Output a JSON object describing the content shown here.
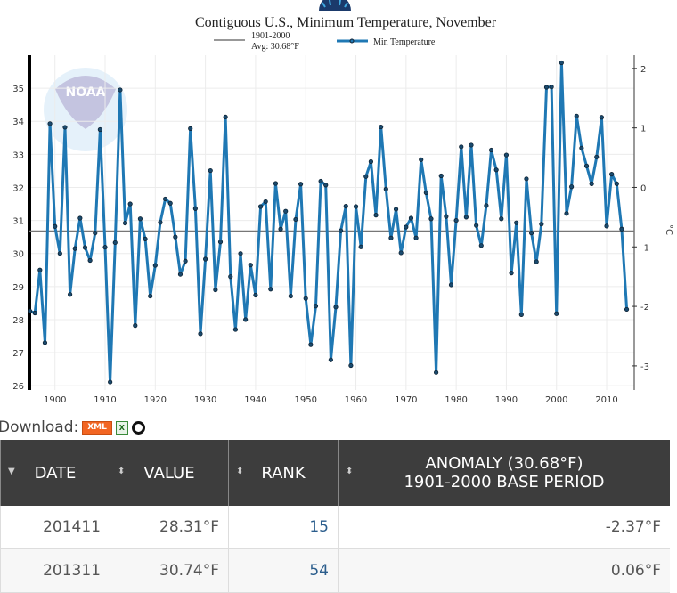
{
  "chart_data": {
    "type": "line",
    "title": "Contiguous U.S., Minimum Temperature, November",
    "legend": [
      {
        "label_line1": "1901-2000",
        "label_line2": "Avg: 30.68°F",
        "color": "#777777"
      },
      {
        "label": "Min Temperature",
        "color": "#1f78b4"
      }
    ],
    "legend_placement": "top",
    "baseline": 30.68,
    "x_ticks": [
      1900,
      1910,
      1920,
      1930,
      1940,
      1950,
      1960,
      1970,
      1980,
      1990,
      2000,
      2010
    ],
    "y_ticks": [
      26,
      27,
      28,
      29,
      30,
      31,
      32,
      33,
      34,
      35
    ],
    "y2_ticks": [
      -3,
      -2,
      -1,
      0,
      1,
      2
    ],
    "y2_label": "°C",
    "xlim": [
      1894.9,
      2015.5
    ],
    "ylim": [
      25.87,
      36.0
    ],
    "grid": true,
    "x": [
      1895,
      1896,
      1897,
      1898,
      1899,
      1900,
      1901,
      1902,
      1903,
      1904,
      1905,
      1906,
      1907,
      1908,
      1909,
      1910,
      1911,
      1912,
      1913,
      1914,
      1915,
      1916,
      1917,
      1918,
      1919,
      1920,
      1921,
      1922,
      1923,
      1924,
      1925,
      1926,
      1927,
      1928,
      1929,
      1930,
      1931,
      1932,
      1933,
      1934,
      1935,
      1936,
      1937,
      1938,
      1939,
      1940,
      1941,
      1942,
      1943,
      1944,
      1945,
      1946,
      1947,
      1948,
      1949,
      1950,
      1951,
      1952,
      1953,
      1954,
      1955,
      1956,
      1957,
      1958,
      1959,
      1960,
      1961,
      1962,
      1963,
      1964,
      1965,
      1966,
      1967,
      1968,
      1969,
      1970,
      1971,
      1972,
      1973,
      1974,
      1975,
      1976,
      1977,
      1978,
      1979,
      1980,
      1981,
      1982,
      1983,
      1984,
      1985,
      1986,
      1987,
      1988,
      1989,
      1990,
      1991,
      1992,
      1993,
      1994,
      1995,
      1996,
      1997,
      1998,
      1999,
      2000,
      2001,
      2002,
      2003,
      2004,
      2005,
      2006,
      2007,
      2008,
      2009,
      2010,
      2011,
      2012,
      2013,
      2014
    ],
    "series": [
      {
        "name": "Min Temperature",
        "values": [
          28.26,
          28.2,
          29.5,
          27.3,
          33.93,
          30.82,
          30.0,
          33.82,
          28.76,
          30.15,
          31.07,
          30.18,
          29.79,
          30.62,
          33.75,
          30.19,
          26.11,
          30.33,
          34.95,
          30.92,
          31.5,
          27.82,
          31.05,
          30.44,
          28.71,
          29.64,
          30.94,
          31.65,
          31.52,
          30.5,
          29.37,
          29.77,
          33.78,
          31.36,
          27.57,
          29.83,
          32.51,
          28.9,
          30.35,
          34.13,
          29.3,
          27.7,
          30.0,
          28.0,
          29.65,
          28.74,
          31.42,
          31.57,
          28.92,
          32.12,
          30.74,
          31.28,
          28.71,
          31.03,
          32.1,
          28.64,
          27.24,
          28.41,
          32.19,
          32.07,
          26.78,
          28.38,
          30.69,
          31.43,
          26.61,
          31.42,
          30.2,
          32.33,
          32.78,
          31.16,
          33.83,
          31.95,
          30.47,
          31.34,
          30.02,
          30.8,
          31.07,
          30.47,
          32.84,
          31.84,
          31.05,
          26.4,
          32.35,
          31.12,
          29.05,
          31.0,
          33.23,
          31.1,
          33.28,
          30.85,
          30.24,
          31.45,
          33.13,
          32.53,
          31.05,
          32.98,
          29.41,
          30.93,
          28.15,
          32.26,
          30.62,
          29.75,
          30.89,
          35.03,
          35.04,
          28.18,
          35.77,
          31.21,
          32.02,
          34.16,
          33.19,
          32.65,
          32.11,
          32.92,
          34.12,
          30.83,
          32.4,
          32.11,
          30.74,
          28.31
        ]
      }
    ]
  },
  "download": {
    "label": "Download:",
    "xml_label": "XML",
    "xls_label": "X"
  },
  "table": {
    "headers": [
      "DATE",
      "VALUE",
      "RANK",
      "ANOMALY (30.68°F)",
      "1901-2000 BASE PERIOD"
    ],
    "rows": [
      {
        "date": "201411",
        "value": "28.31°F",
        "rank": "15",
        "anomaly": "-2.37°F"
      },
      {
        "date": "201311",
        "value": "30.74°F",
        "rank": "54",
        "anomaly": "0.06°F"
      }
    ]
  },
  "colors": {
    "line": "#1f78b4",
    "baseline": "#777777",
    "header_bg": "#3d3d3d",
    "rank": "#2b5d8c"
  }
}
